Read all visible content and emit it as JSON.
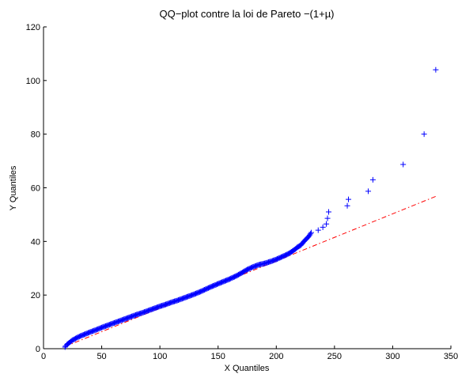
{
  "chart_data": {
    "type": "scatter",
    "title": "QQ−plot contre la loi de Pareto −(1+µ)",
    "xlabel": "X Quantiles",
    "ylabel": "Y Quantiles",
    "xlim": [
      0,
      350
    ],
    "ylim": [
      0,
      120
    ],
    "xticks": [
      0,
      50,
      100,
      150,
      200,
      250,
      300,
      350
    ],
    "yticks": [
      0,
      20,
      40,
      60,
      80,
      100,
      120
    ],
    "grid": false,
    "legend": "none",
    "colors": {
      "points": "#0000ff",
      "reference_line": "#ff0000",
      "axes": "#000000"
    },
    "series": [
      {
        "marker": "plus",
        "x": [
          18.5,
          19,
          20,
          22,
          25,
          30,
          35,
          40,
          45,
          50,
          55,
          60,
          65,
          70,
          75,
          80,
          85,
          90,
          95,
          100,
          105,
          110,
          115,
          120,
          125,
          130,
          135,
          140,
          145,
          150,
          155,
          160,
          165,
          170,
          175,
          180,
          185,
          190,
          195,
          200,
          205,
          210,
          213,
          216,
          218,
          221,
          223,
          225,
          228,
          230,
          236,
          240,
          243,
          244,
          245,
          261,
          262,
          279,
          283,
          309,
          327,
          337
        ],
        "y": [
          0.6,
          1.0,
          1.5,
          2.2,
          3.2,
          4.4,
          5.3,
          6.2,
          7.0,
          7.9,
          8.7,
          9.5,
          10.3,
          11.1,
          11.9,
          12.7,
          13.4,
          14.2,
          15.0,
          15.8,
          16.5,
          17.3,
          18.0,
          18.8,
          19.6,
          20.4,
          21.3,
          22.3,
          23.3,
          24.2,
          25.1,
          26.0,
          27.0,
          28.2,
          29.5,
          30.5,
          31.3,
          31.8,
          32.5,
          33.3,
          34.3,
          35.3,
          36.1,
          37.0,
          37.8,
          38.6,
          39.6,
          40.6,
          41.9,
          43.3,
          44.2,
          45.3,
          46.5,
          48.6,
          51.0,
          53.3,
          55.7,
          58.7,
          63.0,
          68.7,
          80.0,
          104.0
        ]
      },
      {
        "type": "line",
        "style": "dash-dot",
        "x": [
          18.5,
          337
        ],
        "y": [
          0.8,
          56.8
        ]
      }
    ]
  }
}
